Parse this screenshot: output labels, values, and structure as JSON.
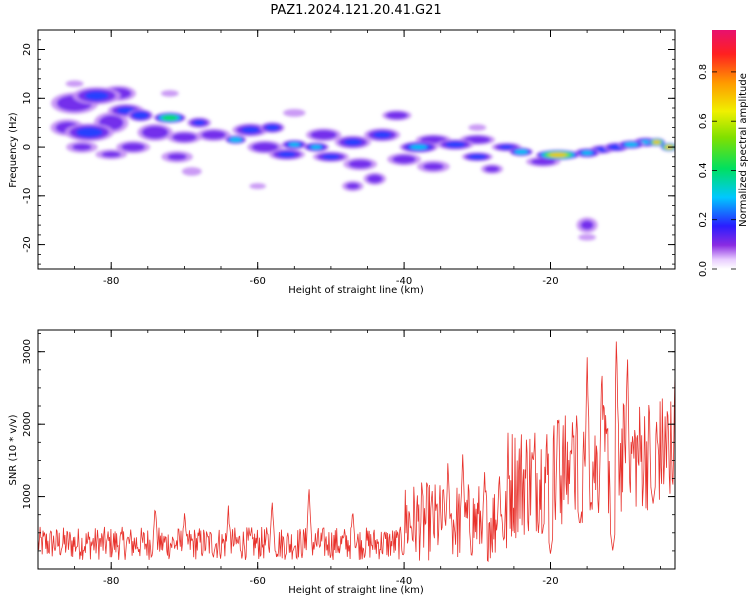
{
  "title": "PAZ1.2024.121.20.41.G21",
  "chart_data": [
    {
      "type": "heatmap",
      "xlabel": "Height of straight line (km)",
      "ylabel": "Frequency (Hz)",
      "xlim": [
        -90,
        -3
      ],
      "ylim": [
        -25,
        24
      ],
      "xticks": [
        -80,
        -60,
        -40,
        -20
      ],
      "yticks": [
        20,
        10,
        0,
        -10,
        -20
      ],
      "colorbar": {
        "label": "Normalized spectral amplitude",
        "ticks": [
          0.0,
          0.2,
          0.4,
          0.6,
          0.8
        ],
        "range": [
          0,
          0.97
        ]
      },
      "blobs": [
        {
          "x": -85,
          "y": 9,
          "w": 4,
          "h": 2.5,
          "v": 0.18
        },
        {
          "x": -82,
          "y": 10.5,
          "w": 4,
          "h": 2,
          "v": 0.2
        },
        {
          "x": -79,
          "y": 11,
          "w": 3,
          "h": 1.8,
          "v": 0.17
        },
        {
          "x": -86,
          "y": 4,
          "w": 3,
          "h": 2,
          "v": 0.15
        },
        {
          "x": -83,
          "y": 3,
          "w": 4,
          "h": 2,
          "v": 0.22
        },
        {
          "x": -80,
          "y": 5,
          "w": 3,
          "h": 2.5,
          "v": 0.16
        },
        {
          "x": -84,
          "y": 0,
          "w": 3,
          "h": 1.5,
          "v": 0.12
        },
        {
          "x": -78,
          "y": 7.5,
          "w": 3,
          "h": 1.5,
          "v": 0.2
        },
        {
          "x": -76,
          "y": 6.5,
          "w": 2,
          "h": 1.3,
          "v": 0.28
        },
        {
          "x": -72,
          "y": 6,
          "w": 2.4,
          "h": 1.1,
          "v": 0.48
        },
        {
          "x": -74,
          "y": 3,
          "w": 3,
          "h": 2,
          "v": 0.18
        },
        {
          "x": -77,
          "y": 0,
          "w": 3,
          "h": 1.5,
          "v": 0.15
        },
        {
          "x": -80,
          "y": -1.5,
          "w": 3,
          "h": 1.3,
          "v": 0.12
        },
        {
          "x": -70,
          "y": 2,
          "w": 3,
          "h": 1.5,
          "v": 0.16
        },
        {
          "x": -68,
          "y": 5,
          "w": 2,
          "h": 1.2,
          "v": 0.2
        },
        {
          "x": -66,
          "y": 2.5,
          "w": 3,
          "h": 1.5,
          "v": 0.16
        },
        {
          "x": -71,
          "y": -2,
          "w": 3,
          "h": 1.5,
          "v": 0.12
        },
        {
          "x": -69,
          "y": -5,
          "w": 2,
          "h": 1.2,
          "v": 0.1
        },
        {
          "x": -63,
          "y": 1.5,
          "w": 1.6,
          "h": 0.9,
          "v": 0.4
        },
        {
          "x": -61,
          "y": 3.5,
          "w": 3,
          "h": 1.5,
          "v": 0.2
        },
        {
          "x": -58,
          "y": 4,
          "w": 2,
          "h": 1.2,
          "v": 0.24
        },
        {
          "x": -59,
          "y": 0,
          "w": 3,
          "h": 1.5,
          "v": 0.18
        },
        {
          "x": -55,
          "y": 0.5,
          "w": 2,
          "h": 1.0,
          "v": 0.3
        },
        {
          "x": -56,
          "y": -1.5,
          "w": 3,
          "h": 1.3,
          "v": 0.2
        },
        {
          "x": -52,
          "y": 0,
          "w": 2,
          "h": 1.0,
          "v": 0.3
        },
        {
          "x": -51,
          "y": 2.5,
          "w": 3,
          "h": 1.5,
          "v": 0.18
        },
        {
          "x": -50,
          "y": -2,
          "w": 3,
          "h": 1.2,
          "v": 0.2
        },
        {
          "x": -47,
          "y": 1,
          "w": 3,
          "h": 1.5,
          "v": 0.2
        },
        {
          "x": -46,
          "y": -3.5,
          "w": 3,
          "h": 1.5,
          "v": 0.15
        },
        {
          "x": -44,
          "y": -6.5,
          "w": 2,
          "h": 1.5,
          "v": 0.15
        },
        {
          "x": -47,
          "y": -8,
          "w": 2,
          "h": 1.3,
          "v": 0.13
        },
        {
          "x": -43,
          "y": 2.5,
          "w": 3,
          "h": 1.5,
          "v": 0.2
        },
        {
          "x": -41,
          "y": 6.5,
          "w": 2.5,
          "h": 1.2,
          "v": 0.18
        },
        {
          "x": -38,
          "y": 0,
          "w": 3,
          "h": 1.2,
          "v": 0.3
        },
        {
          "x": -36,
          "y": 1.5,
          "w": 3,
          "h": 1.2,
          "v": 0.18
        },
        {
          "x": -40,
          "y": -2.5,
          "w": 3,
          "h": 1.5,
          "v": 0.15
        },
        {
          "x": -36,
          "y": -4,
          "w": 3,
          "h": 1.5,
          "v": 0.13
        },
        {
          "x": -33,
          "y": 0.5,
          "w": 3,
          "h": 1.2,
          "v": 0.22
        },
        {
          "x": -30,
          "y": -2,
          "w": 2.5,
          "h": 1.0,
          "v": 0.24
        },
        {
          "x": -30,
          "y": 1.5,
          "w": 3,
          "h": 1.2,
          "v": 0.18
        },
        {
          "x": -28,
          "y": -4.5,
          "w": 2,
          "h": 1.2,
          "v": 0.14
        },
        {
          "x": -26,
          "y": 0,
          "w": 2.5,
          "h": 1.0,
          "v": 0.2
        },
        {
          "x": -24,
          "y": -1,
          "w": 1.8,
          "h": 0.9,
          "v": 0.38
        },
        {
          "x": -21,
          "y": -3,
          "w": 3,
          "h": 1.2,
          "v": 0.16
        },
        {
          "x": -19,
          "y": -1.6,
          "w": 3.2,
          "h": 1.0,
          "v": 0.7
        },
        {
          "x": -15,
          "y": -1.2,
          "w": 2,
          "h": 1.0,
          "v": 0.3
        },
        {
          "x": -13,
          "y": -0.5,
          "w": 2,
          "h": 1.0,
          "v": 0.22
        },
        {
          "x": -11,
          "y": 0,
          "w": 2,
          "h": 1.0,
          "v": 0.26
        },
        {
          "x": -9,
          "y": 0.5,
          "w": 2,
          "h": 0.9,
          "v": 0.35
        },
        {
          "x": -7,
          "y": 1,
          "w": 2,
          "h": 1.0,
          "v": 0.3
        },
        {
          "x": -5.5,
          "y": 1,
          "w": 1.2,
          "h": 0.8,
          "v": 0.75
        },
        {
          "x": -3.8,
          "y": 0,
          "w": 1.2,
          "h": 0.8,
          "v": 0.8
        },
        {
          "x": -15,
          "y": -16,
          "w": 2,
          "h": 2,
          "v": 0.12
        },
        {
          "x": -15,
          "y": -18.5,
          "w": 2,
          "h": 1.0,
          "v": 0.08
        },
        {
          "x": -85,
          "y": 13,
          "w": 2,
          "h": 1.0,
          "v": 0.08
        },
        {
          "x": -55,
          "y": 7,
          "w": 2.5,
          "h": 1.2,
          "v": 0.08
        },
        {
          "x": -72,
          "y": 11,
          "w": 2,
          "h": 1.0,
          "v": 0.08
        },
        {
          "x": -30,
          "y": 4,
          "w": 2,
          "h": 1.0,
          "v": 0.08
        },
        {
          "x": -60,
          "y": -8,
          "w": 2,
          "h": 1.0,
          "v": 0.07
        }
      ]
    },
    {
      "type": "line",
      "xlabel": "Height of straight line (km)",
      "ylabel": "SNR (10 * v/v)",
      "xlim": [
        -90,
        -3
      ],
      "ylim": [
        0,
        3300
      ],
      "xticks": [
        -80,
        -60,
        -40,
        -20
      ],
      "yticks": [
        1000,
        2000,
        3000
      ],
      "color": "#e8322c",
      "segments": [
        {
          "x0": -90,
          "x1": -40,
          "base": 330,
          "amp": 230,
          "peaks": [
            [
              -74,
              900
            ],
            [
              -70,
              800
            ],
            [
              -64,
              850
            ],
            [
              -58,
              950
            ],
            [
              -53,
              1150
            ],
            [
              -47,
              850
            ]
          ]
        },
        {
          "x0": -40,
          "x1": -26,
          "base": 600,
          "amp": 550,
          "peaks": [
            [
              -34,
              1500
            ],
            [
              -32,
              1600
            ],
            [
              -29,
              1300
            ],
            [
              -27,
              1350
            ]
          ]
        },
        {
          "x0": -26,
          "x1": -3,
          "base": 1100,
          "amp": 800,
          "peaks": [
            [
              -19,
              2250
            ],
            [
              -17,
              2100
            ],
            [
              -15,
              3050
            ],
            [
              -13,
              2900
            ],
            [
              -11,
              3300
            ],
            [
              -9.5,
              3050
            ],
            [
              -4,
              2050
            ],
            [
              -3,
              2650
            ]
          ],
          "troughs": [
            [
              -20,
              200
            ],
            [
              -16,
              600
            ],
            [
              -11.5,
              250
            ],
            [
              -6,
              900
            ]
          ]
        }
      ]
    }
  ]
}
